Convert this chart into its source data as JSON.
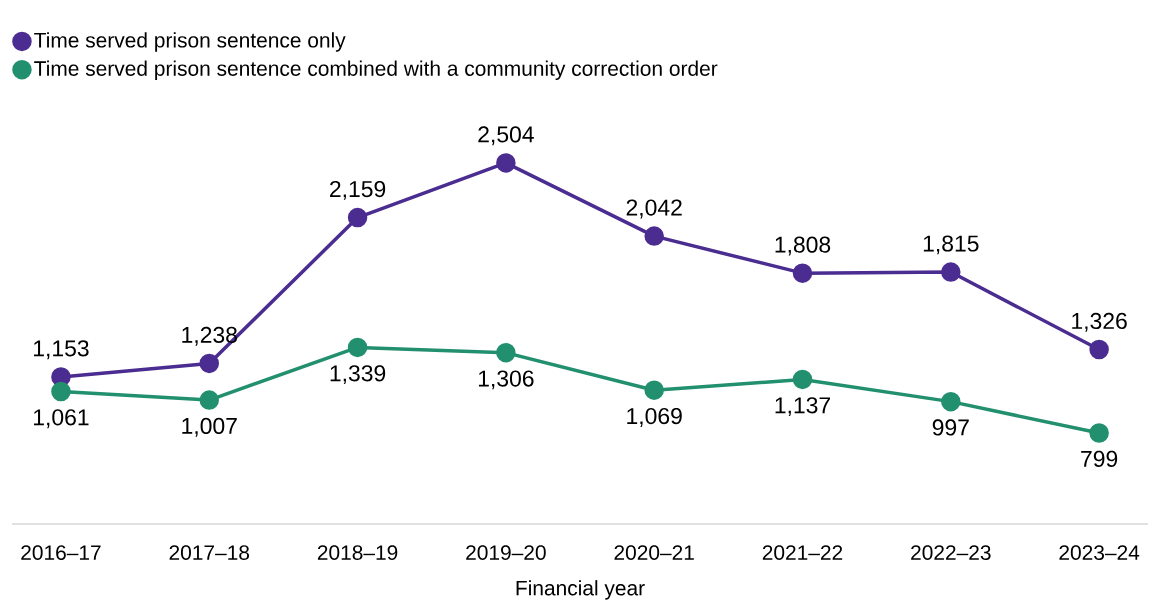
{
  "chart_data": {
    "type": "line",
    "xlabel": "Financial year",
    "categories": [
      "2016–17",
      "2017–18",
      "2018–19",
      "2019–20",
      "2020–21",
      "2021–22",
      "2022–23",
      "2023–24"
    ],
    "series": [
      {
        "name": "Time served prison sentence only",
        "color": "#4b2c91",
        "values": [
          1153,
          1238,
          2159,
          2504,
          2042,
          1808,
          1815,
          1326
        ],
        "value_labels": [
          "1,153",
          "1,238",
          "2,159",
          "2,504",
          "2,042",
          "1,808",
          "1,815",
          "1,326"
        ]
      },
      {
        "name": "Time served prison sentence combined with a community correction order",
        "color": "#22906e",
        "values": [
          1061,
          1007,
          1339,
          1306,
          1069,
          1137,
          997,
          799
        ],
        "value_labels": [
          "1,061",
          "1,007",
          "1,339",
          "1,306",
          "1,069",
          "1,137",
          "997",
          "799"
        ]
      }
    ],
    "legend": "top left",
    "marker": "circle",
    "line_style": "solid",
    "grid": false
  }
}
